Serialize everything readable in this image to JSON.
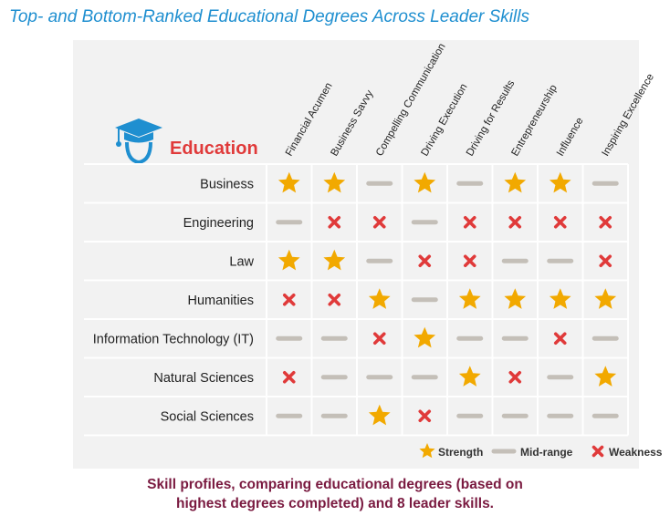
{
  "title": "Top- and Bottom-Ranked Educational Degrees Across Leader Skills",
  "header_label": "Education",
  "caption_line1": "Skill profiles, comparing educational degrees (based on",
  "caption_line2": "highest degrees completed) and 8 leader skills.",
  "colors": {
    "title": "#1f8fd0",
    "star": "#f2a900",
    "mid": "#c4bfb8",
    "weakness": "#e03a3a",
    "caption": "#7a1a40",
    "icon": "#1f8fd0"
  },
  "chart_data": {
    "type": "table",
    "columns": [
      "Financial Acumen",
      "Business Savvy",
      "Compelling Communication",
      "Driving Execution",
      "Driving for Results",
      "Entrepreneurship",
      "Influence",
      "Inspiring Excellence"
    ],
    "rows": [
      "Business",
      "Engineering",
      "Law",
      "Humanities",
      "Information Technology (IT)",
      "Natural Sciences",
      "Social Sciences"
    ],
    "values": [
      [
        "S",
        "S",
        "M",
        "S",
        "M",
        "S",
        "S",
        "M"
      ],
      [
        "M",
        "W",
        "W",
        "M",
        "W",
        "W",
        "W",
        "W"
      ],
      [
        "S",
        "S",
        "M",
        "W",
        "W",
        "M",
        "M",
        "W"
      ],
      [
        "W",
        "W",
        "S",
        "M",
        "S",
        "S",
        "S",
        "S"
      ],
      [
        "M",
        "M",
        "W",
        "S",
        "M",
        "M",
        "W",
        "M"
      ],
      [
        "W",
        "M",
        "M",
        "M",
        "S",
        "W",
        "M",
        "S"
      ],
      [
        "M",
        "M",
        "S",
        "W",
        "M",
        "M",
        "M",
        "M"
      ]
    ],
    "legend": [
      {
        "code": "S",
        "label": "Strength",
        "icon": "star-icon"
      },
      {
        "code": "M",
        "label": "Mid-range",
        "icon": "dash-icon"
      },
      {
        "code": "W",
        "label": "Weakness",
        "icon": "x-icon"
      }
    ],
    "legend_position": "bottom-right"
  }
}
